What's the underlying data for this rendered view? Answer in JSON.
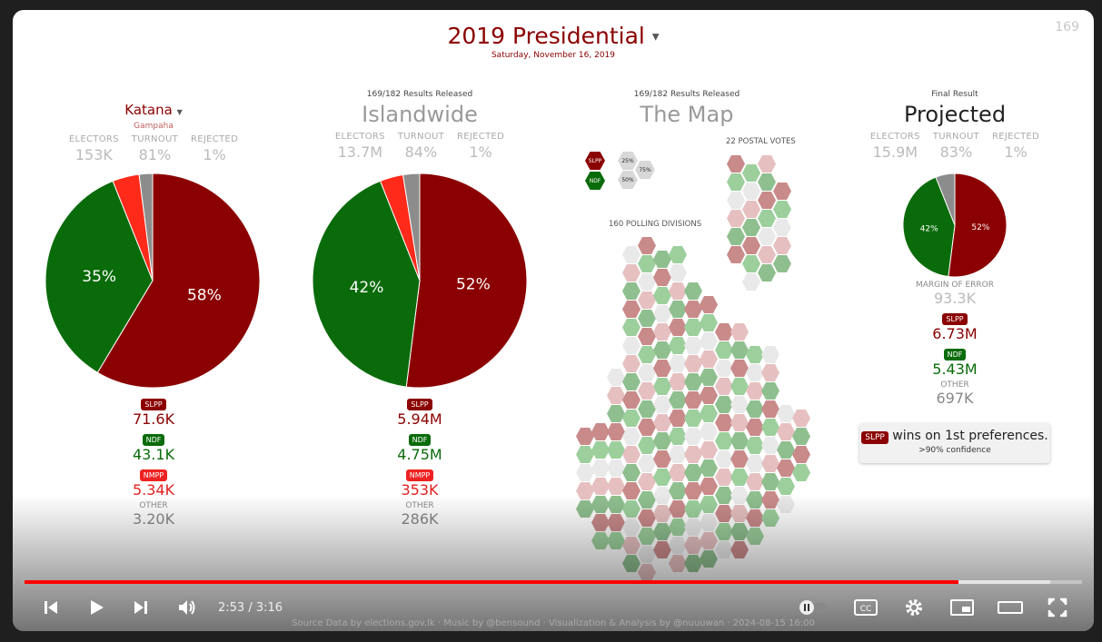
{
  "header": {
    "counter": "169",
    "title": "2019 Presidential",
    "date": "Saturday, November 16, 2019"
  },
  "panels": {
    "katana": {
      "title": "Katana",
      "subtitle": "Gampaha",
      "stats": [
        {
          "label": "ELECTORS",
          "value": "153K"
        },
        {
          "label": "TURNOUT",
          "value": "81%"
        },
        {
          "label": "REJECTED",
          "value": "1%"
        }
      ],
      "pie": {
        "slpp": 58,
        "ndf": 35,
        "nmpp": 4,
        "other": 2,
        "slpp_label": "58%",
        "ndf_label": "35%"
      },
      "results": {
        "slpp": "71.6K",
        "ndf": "43.1K",
        "nmpp": "5.34K",
        "other": "3.20K"
      }
    },
    "islandwide": {
      "pre": "169/182 Results Released",
      "title": "Islandwide",
      "stats": [
        {
          "label": "ELECTORS",
          "value": "13.7M"
        },
        {
          "label": "TURNOUT",
          "value": "84%"
        },
        {
          "label": "REJECTED",
          "value": "1%"
        }
      ],
      "pie": {
        "slpp": 52,
        "ndf": 42,
        "nmpp": 3.5,
        "other": 2.5,
        "slpp_label": "52%",
        "ndf_label": "42%"
      },
      "results": {
        "slpp": "5.94M",
        "ndf": "4.75M",
        "nmpp": "353K",
        "other": "286K"
      }
    },
    "map": {
      "pre": "169/182 Results Released",
      "title": "The Map",
      "postal_label": "22 POSTAL VOTES",
      "polling_label": "160 POLLING DIVISIONS",
      "legend": {
        "slpp": "SLPP",
        "ndf": "NDF",
        "p25": "25%",
        "p50": "50%",
        "p75": "75%"
      }
    },
    "projected": {
      "pre": "Final Result",
      "title": "Projected",
      "stats": [
        {
          "label": "ELECTORS",
          "value": "15.9M"
        },
        {
          "label": "TURNOUT",
          "value": "83%"
        },
        {
          "label": "REJECTED",
          "value": "1%"
        }
      ],
      "pie": {
        "slpp": 52,
        "ndf": 42,
        "nmpp": 0,
        "other": 6,
        "slpp_label": "52%",
        "ndf_label": "42%"
      },
      "moe_label": "MARGIN OF ERROR",
      "moe_value": "93.3K",
      "results": {
        "slpp": "6.73M",
        "ndf": "5.43M",
        "other": "697K"
      },
      "wins_text": "wins on 1st preferences.",
      "confidence": ">90% confidence"
    }
  },
  "labels": {
    "slpp": "SLPP",
    "ndf": "NDF",
    "nmpp": "NMPP",
    "other": "OTHER"
  },
  "colors": {
    "slpp": "#8b0000",
    "ndf": "#0a6b0a",
    "nmpp": "#ff2a1a",
    "other": "#8c8c8c"
  },
  "player": {
    "time": "2:53 / 3:16",
    "played_fraction": 0.883,
    "buffered_fraction": 0.97,
    "source": "Source Data by elections.gov.lk · Music by @bensound · Visualization & Analysis by @nuuuwan · 2024-08-15 16:00"
  }
}
